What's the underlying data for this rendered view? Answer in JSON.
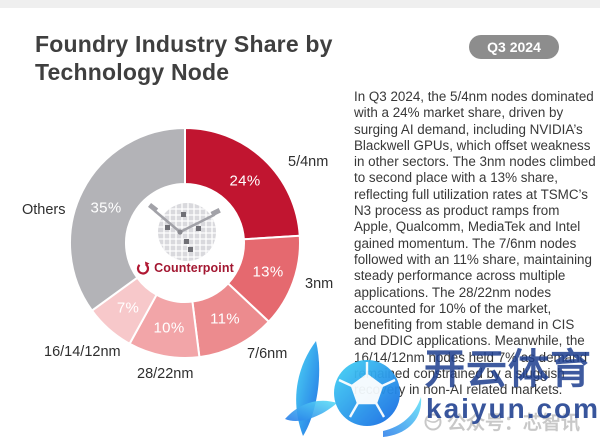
{
  "header": {
    "title": "Foundry Industry Share by Technology Node",
    "badge": "Q3 2024",
    "badge_bg": "#8d8d8d",
    "badge_text_color": "#ffffff"
  },
  "chart_data": {
    "type": "pie",
    "subtype": "donut",
    "title": "Foundry Industry Share by Technology Node",
    "period": "Q3 2024",
    "unit": "%",
    "direction": "clockwise",
    "start_angle_deg": 0,
    "labels_position": "outside",
    "percent_labels_position": "inside",
    "slices": [
      {
        "label": "5/4nm",
        "value": 24,
        "value_label": "24%",
        "color": "#c11530"
      },
      {
        "label": "3nm",
        "value": 13,
        "value_label": "13%",
        "color": "#e5696f"
      },
      {
        "label": "7/6nm",
        "value": 11,
        "value_label": "11%",
        "color": "#ec8b8e"
      },
      {
        "label": "28/22nm",
        "value": 10,
        "value_label": "10%",
        "color": "#f2a5a8"
      },
      {
        "label": "16/14/12nm",
        "value": 7,
        "value_label": "7%",
        "color": "#f7c8ca"
      },
      {
        "label": "Others",
        "value": 35,
        "value_label": "35%",
        "color": "#b3b3b7"
      }
    ]
  },
  "center_logo": {
    "brand": "Counterpoint",
    "brand_color": "#a31731",
    "icon": "counterpoint-circle-arrow-icon",
    "graphic": "wafer-with-tweezer-hands"
  },
  "analysis": {
    "text": "In Q3 2024, the 5/4nm nodes dominated with a 24% market share, driven by surging AI demand, including NVIDIA’s Blackwell GPUs, which offset weakness in other sectors. The 3nm nodes climbed to second place with a 13% share, reflecting full utilization rates at TSMC’s N3 process as product ramps from Apple, Qualcomm, MediaTek and Intel gained momentum. The 7/6nm nodes followed with an 11% share, maintaining steady performance across multiple applications. The 28/22nm nodes accounted for 10% of the market, benefiting from stable demand in CIS and DDIC applications. Meanwhile, the 16/14/12nm nodes held 7% as demand remained constrained by a sluggish recovery in non-AI related markets."
  },
  "watermark": {
    "brand_cn": "开云体育",
    "brand_url": "kaiyun.com",
    "account_line": "公众号：芯智讯",
    "navy_color": "#1d3e8f"
  }
}
